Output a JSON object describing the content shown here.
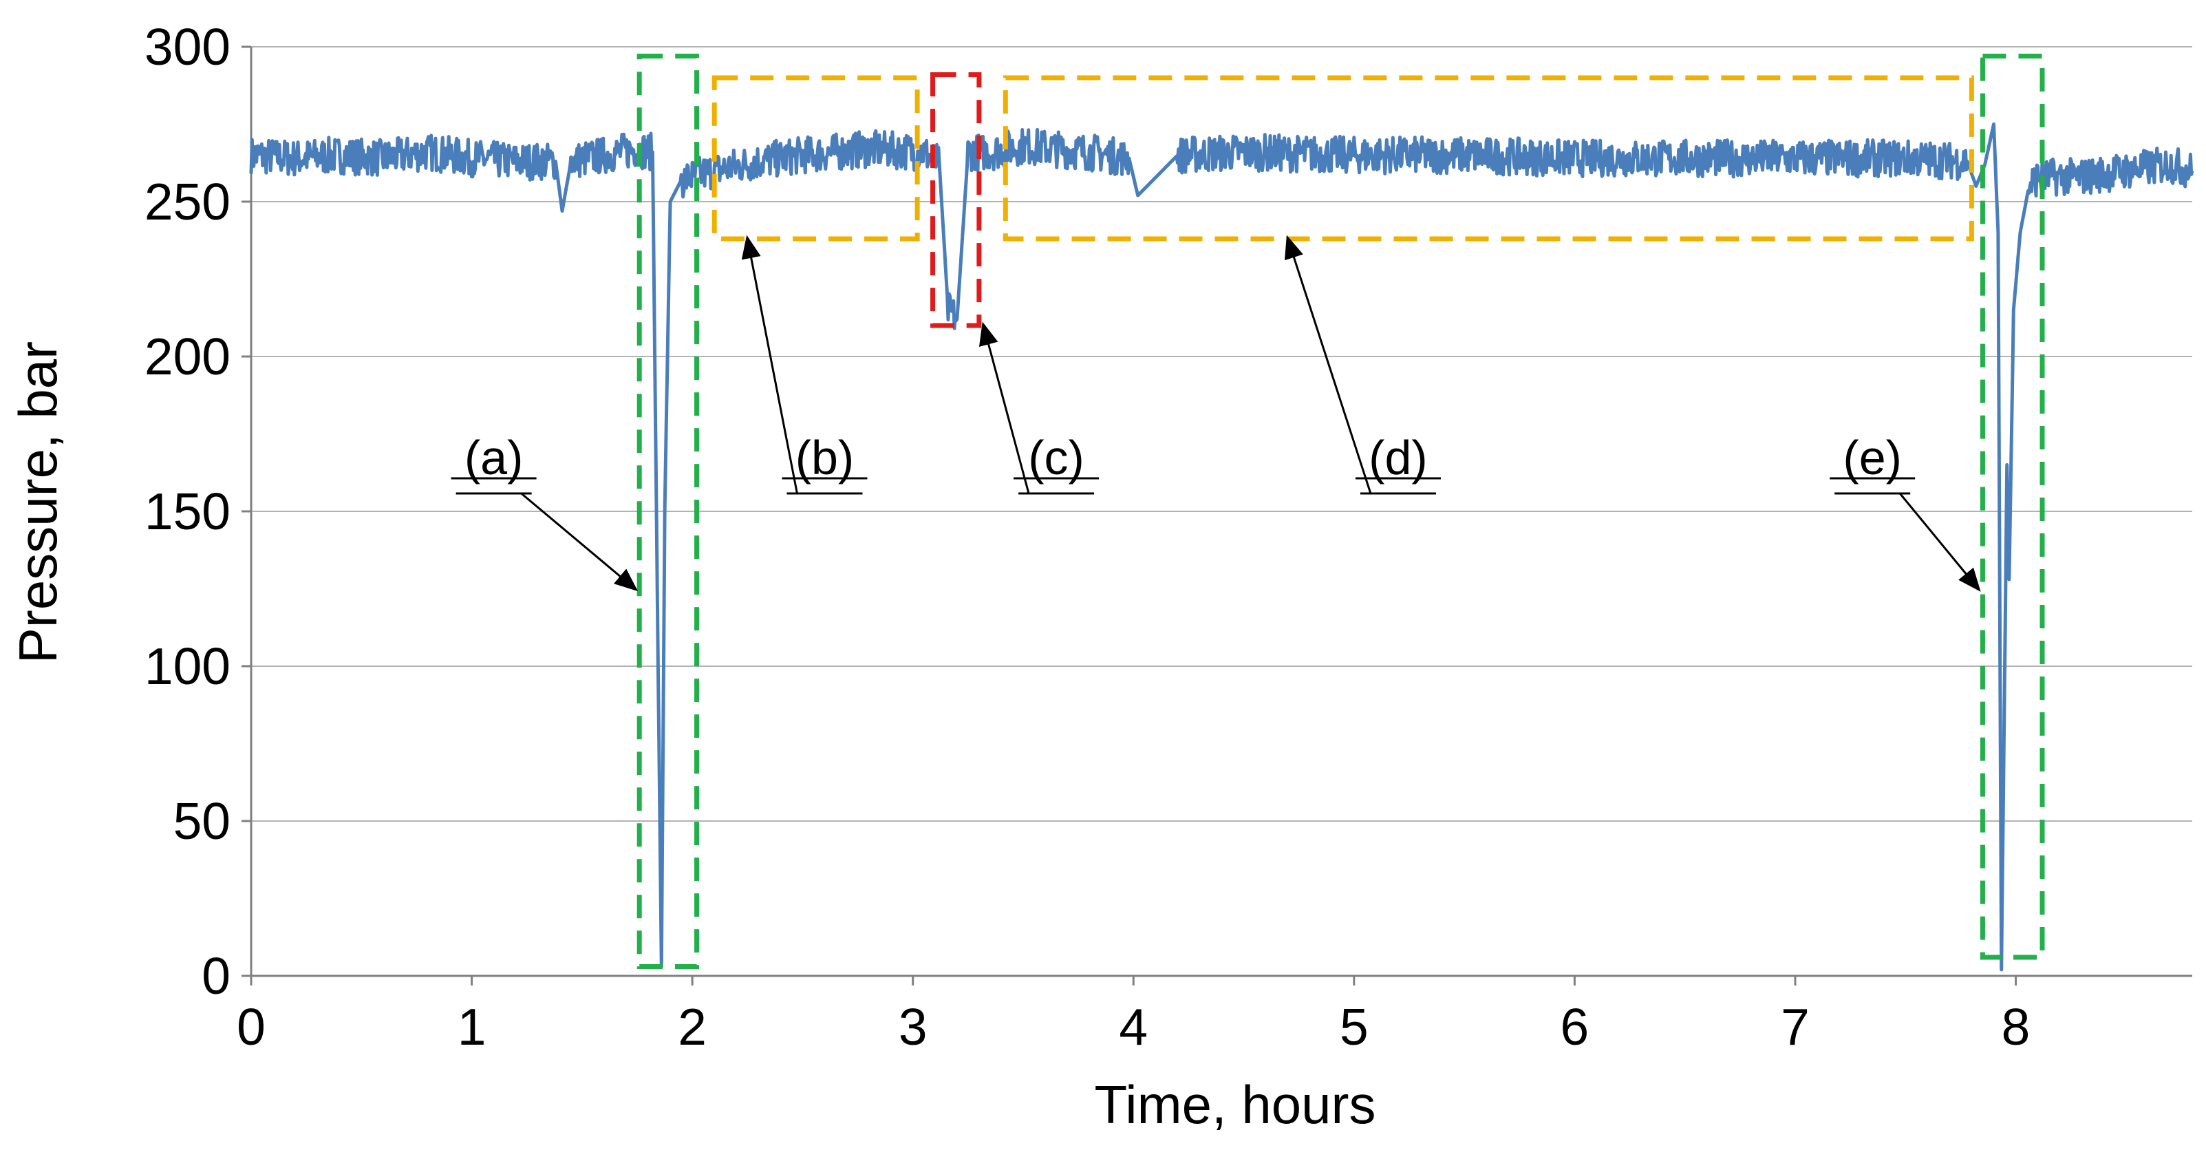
{
  "chart_data": {
    "type": "line",
    "xlabel": "Time, hours",
    "ylabel": "Pressure, bar",
    "xlim": [
      0,
      8.8
    ],
    "ylim": [
      0,
      300
    ],
    "x_ticks": [
      0,
      1,
      2,
      3,
      4,
      5,
      6,
      7,
      8
    ],
    "x_tick_labels": [
      "0",
      "1",
      "2",
      "3",
      "4",
      "5",
      "6",
      "7",
      "8"
    ],
    "y_ticks": [
      0,
      50,
      100,
      150,
      200,
      250,
      300
    ],
    "y_tick_labels": [
      "0",
      "50",
      "100",
      "150",
      "200",
      "250",
      "300"
    ],
    "grid": "horizontal",
    "series": [
      {
        "name": "Pressure",
        "color": "#4a7ebb",
        "x": [
          0.0,
          0.2,
          0.4,
          0.6,
          0.8,
          1.0,
          1.2,
          1.38,
          1.41,
          1.45,
          1.6,
          1.75,
          1.82,
          1.845,
          1.86,
          1.875,
          1.9,
          1.95,
          2.0,
          2.1,
          2.3,
          2.5,
          2.8,
          3.05,
          3.12,
          3.16,
          3.2,
          3.25,
          3.35,
          3.5,
          3.8,
          3.98,
          4.02,
          4.2,
          4.5,
          5.0,
          5.5,
          6.0,
          6.5,
          7.0,
          7.5,
          7.78,
          7.82,
          7.86,
          7.9,
          7.92,
          7.935,
          7.96,
          7.97,
          7.99,
          8.02,
          8.06,
          8.1,
          8.3,
          8.5,
          8.7,
          8.8
        ],
        "y": [
          265,
          264,
          265,
          264,
          266,
          264,
          263,
          263,
          247,
          263,
          265,
          267,
          266,
          100,
          3,
          150,
          250,
          257,
          258,
          260,
          263,
          265,
          267,
          266,
          262,
          215,
          212,
          266,
          266,
          268,
          266,
          264,
          252,
          265,
          266,
          265,
          265,
          264,
          264,
          264,
          264,
          263,
          255,
          262,
          275,
          240,
          2,
          165,
          128,
          215,
          240,
          255,
          258,
          258,
          260,
          262,
          260
        ]
      }
    ],
    "annotations": [
      {
        "label": "(a)",
        "box": {
          "x": [
            1.76,
            2.02
          ],
          "y": [
            3,
            297
          ]
        },
        "box_color": "#22b04a",
        "arrow_from": {
          "x": 1.1,
          "y": 162
        },
        "arrow_to": {
          "x": 1.74,
          "y": 125
        }
      },
      {
        "label": "(b)",
        "box": {
          "x": [
            2.1,
            3.02
          ],
          "y": [
            238,
            290
          ]
        },
        "box_color": "#f0b000",
        "arrow_from": {
          "x": 2.6,
          "y": 162
        },
        "arrow_to": {
          "x": 2.25,
          "y": 238
        }
      },
      {
        "label": "(c)",
        "box": {
          "x": [
            3.09,
            3.3
          ],
          "y": [
            210,
            291
          ]
        },
        "box_color": "#e01b1b",
        "arrow_from": {
          "x": 3.65,
          "y": 162
        },
        "arrow_to": {
          "x": 3.32,
          "y": 210
        }
      },
      {
        "label": "(d)",
        "box": {
          "x": [
            3.42,
            7.8
          ],
          "y": [
            238,
            290
          ]
        },
        "box_color": "#f0b000",
        "arrow_from": {
          "x": 5.2,
          "y": 162
        },
        "arrow_to": {
          "x": 4.7,
          "y": 238
        }
      },
      {
        "label": "(e)",
        "box": {
          "x": [
            7.85,
            8.12
          ],
          "y": [
            6,
            297
          ]
        },
        "box_color": "#22b04a",
        "arrow_from": {
          "x": 7.35,
          "y": 162
        },
        "arrow_to": {
          "x": 7.83,
          "y": 125
        }
      }
    ]
  }
}
